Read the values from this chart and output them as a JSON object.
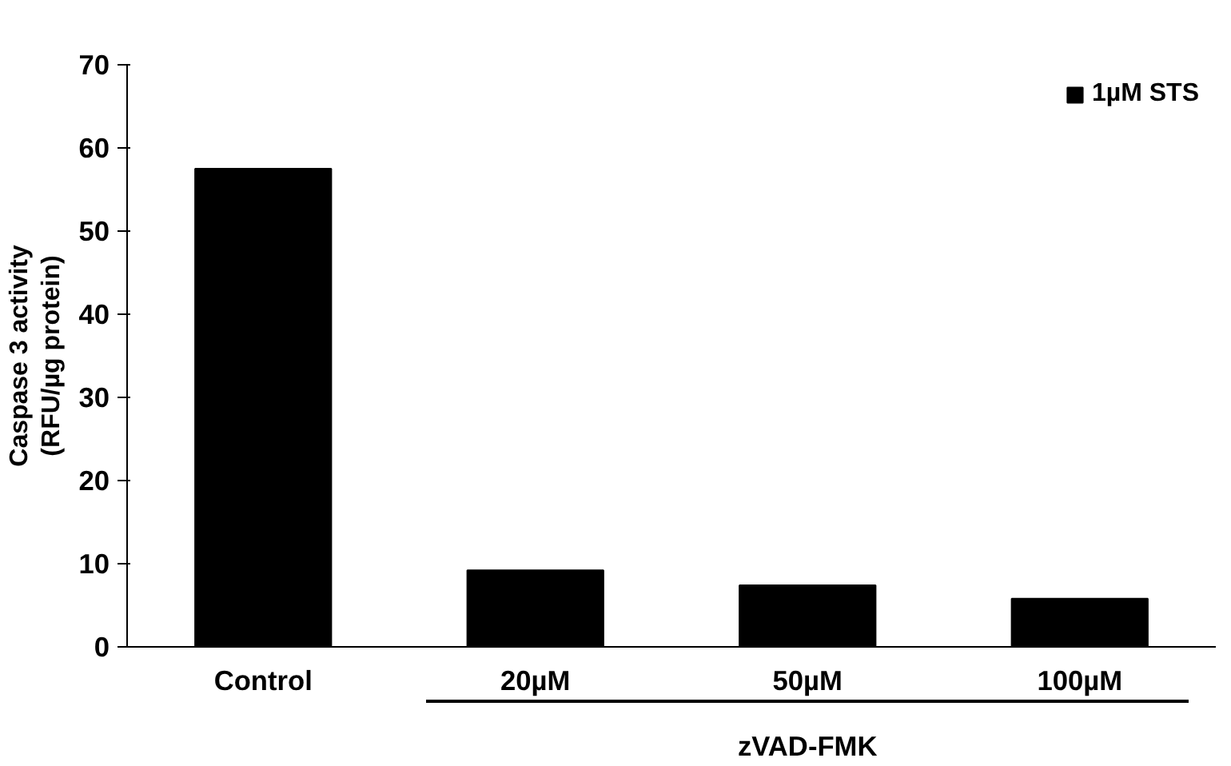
{
  "chart_data": {
    "type": "bar",
    "ylabel": "Caspase 3 activity\n(RFU/µg protein)",
    "categories": [
      "Control",
      "20µM",
      "50µM",
      "100µM"
    ],
    "series": [
      {
        "name": "1µM STS",
        "color": "#000000",
        "values": [
          57.5,
          9.2,
          7.4,
          5.8
        ]
      }
    ],
    "ylim": [
      0,
      70
    ],
    "yticks": [
      0,
      10,
      20,
      30,
      40,
      50,
      60,
      70
    ],
    "grid": false,
    "legend": "top right",
    "annotations": [
      "zVAD-FMK"
    ]
  }
}
